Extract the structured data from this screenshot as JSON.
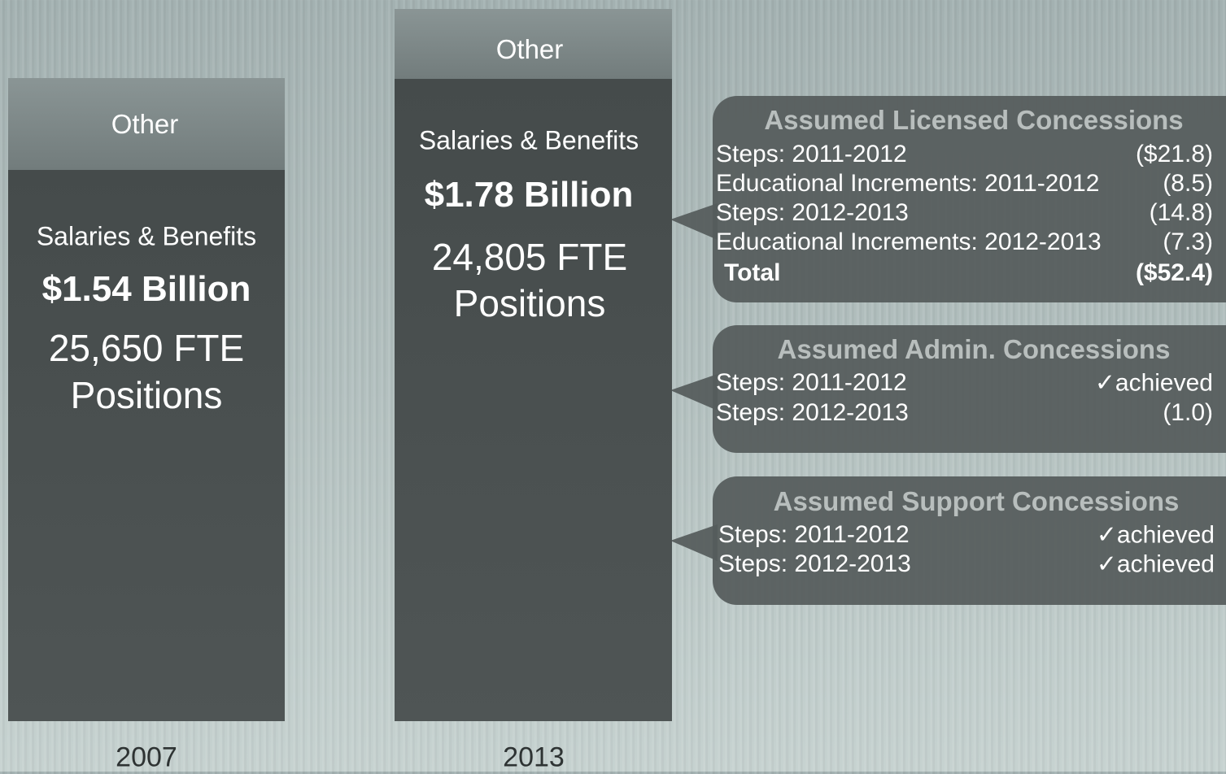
{
  "columns": [
    {
      "year": "2007",
      "top": "Other",
      "label": "Salaries & Benefits",
      "amount": "$1.54 Billion",
      "fte": "25,650 FTE",
      "positions": "Positions"
    },
    {
      "year": "2013",
      "top": "Other",
      "label": "Salaries & Benefits",
      "amount": "$1.78 Billion",
      "fte": "24,805 FTE",
      "positions": "Positions"
    }
  ],
  "callouts": [
    {
      "title": "Assumed Licensed Concessions",
      "rows": [
        [
          "Steps: 2011-2012",
          "($21.8)"
        ],
        [
          "Educational Increments: 2011-2012",
          "(8.5)"
        ],
        [
          "Steps: 2012-2013",
          "(14.8)"
        ],
        [
          "Educational Increments: 2012-2013",
          "(7.3)"
        ]
      ],
      "total": [
        "Total",
        "($52.4)"
      ]
    },
    {
      "title": "Assumed Admin. Concessions",
      "rows": [
        [
          "Steps: 2011-2012",
          "✓achieved"
        ],
        [
          "Steps: 2012-2013",
          "(1.0)"
        ]
      ]
    },
    {
      "title": "Assumed Support Concessions",
      "rows": [
        [
          "Steps: 2011-2012",
          "✓achieved"
        ],
        [
          "Steps: 2012-2013",
          "✓achieved"
        ]
      ]
    }
  ]
}
